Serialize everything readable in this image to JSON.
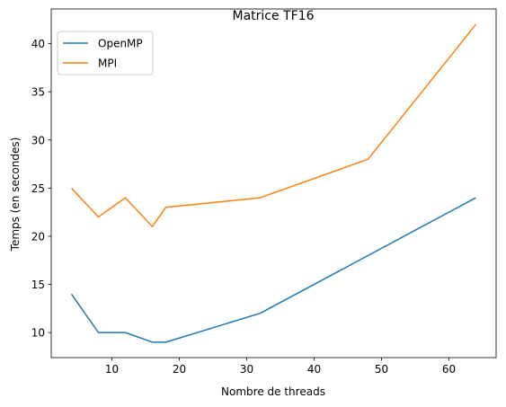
{
  "chart_data": {
    "type": "line",
    "title": "Matrice TF16",
    "xlabel": "Nombre de threads",
    "ylabel": "Temps (en secondes)",
    "xlim": [
      1,
      67
    ],
    "ylim": [
      7.4,
      43.6
    ],
    "xticks": [
      10,
      20,
      30,
      40,
      50,
      60
    ],
    "yticks": [
      10,
      15,
      20,
      25,
      30,
      35,
      40
    ],
    "grid": false,
    "legend_position": "upper left",
    "series": [
      {
        "name": "OpenMP",
        "color": "#1f77b4",
        "x": [
          4,
          8,
          12,
          16,
          18,
          32,
          64
        ],
        "y": [
          14,
          10,
          10,
          9,
          9,
          12,
          24
        ]
      },
      {
        "name": "MPI",
        "color": "#ff7f0e",
        "x": [
          4,
          8,
          12,
          16,
          18,
          32,
          48,
          64
        ],
        "y": [
          25,
          22,
          24,
          21,
          23,
          24,
          28,
          42
        ]
      }
    ]
  }
}
